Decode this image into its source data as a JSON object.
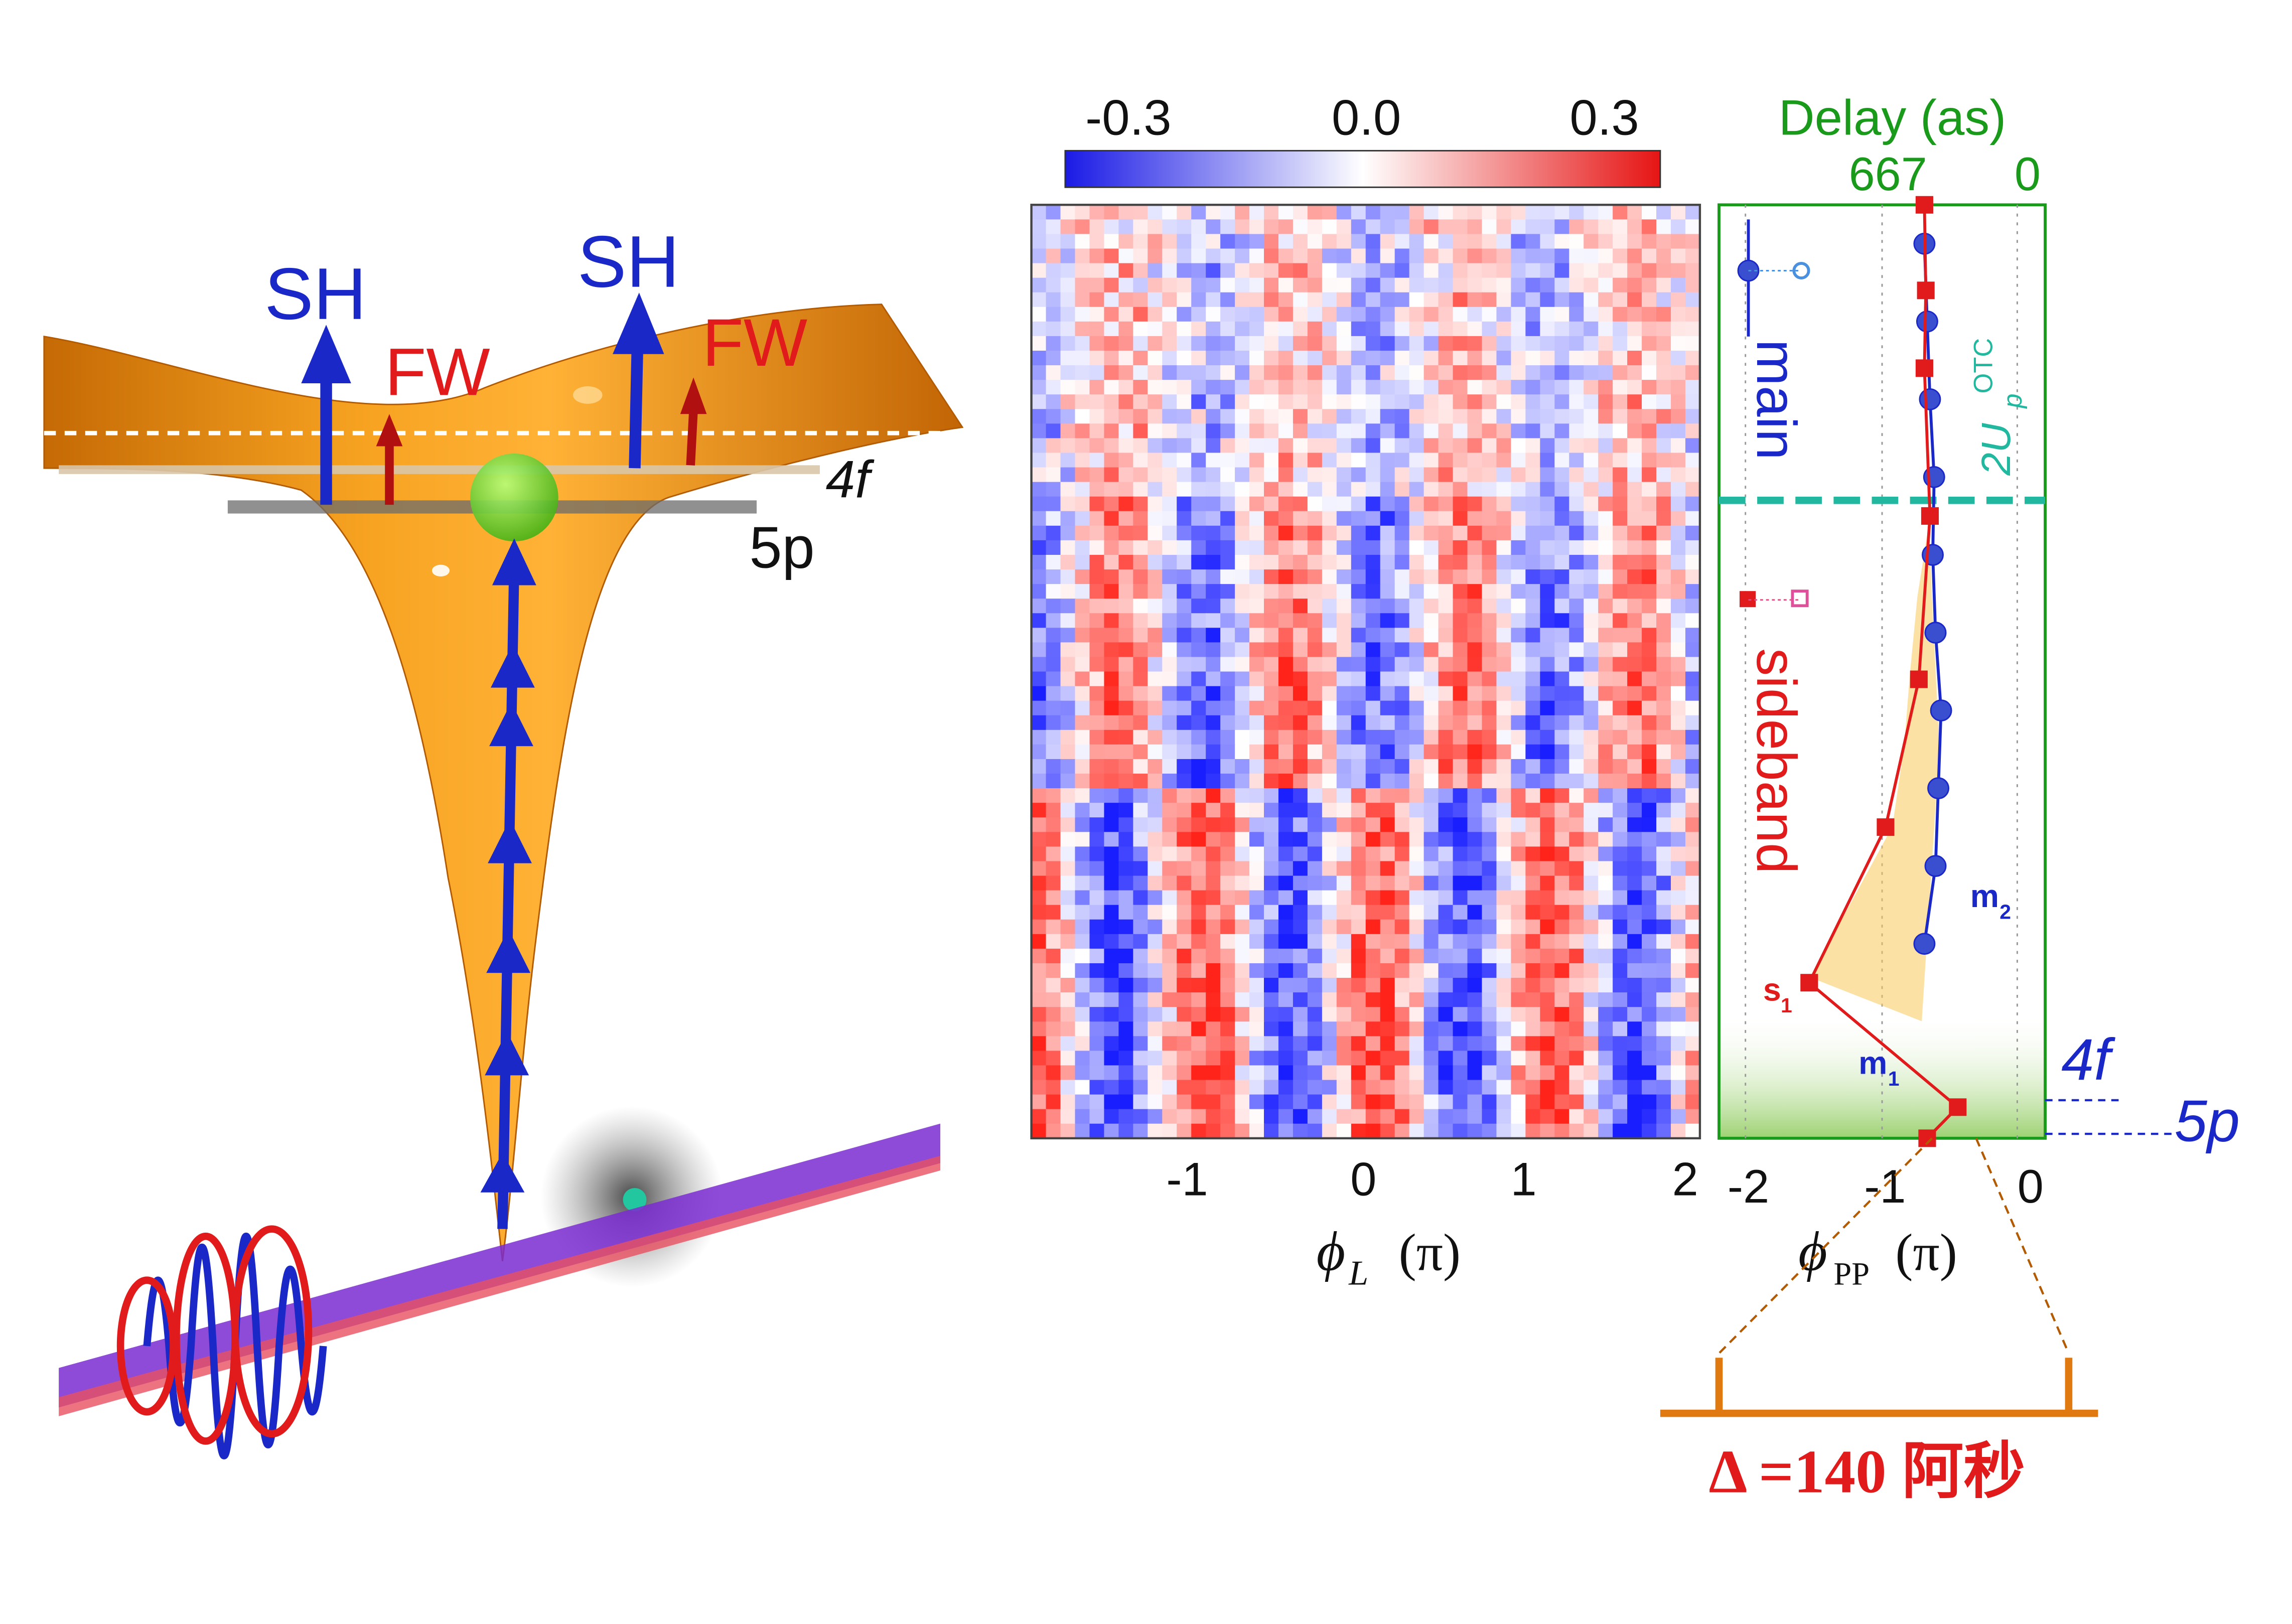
{
  "colors": {
    "blue": "#1b28c8",
    "red": "#e11b1b",
    "green": "#1a9a1a",
    "teal": "#22b8a0",
    "orange": "#e07a10",
    "surface": "#f59a12",
    "darkred": "#a11010"
  },
  "schematic": {
    "sh_left": "SH",
    "sh_right": "SH",
    "fw_left": "FW",
    "fw_right": "FW",
    "level_5p": "5p",
    "level_4f": "4f"
  },
  "colorbar": {
    "ticks": [
      "-0.3",
      "0.0",
      "0.3"
    ],
    "min": -0.3,
    "max": 0.3
  },
  "heatmap": {
    "x_ticks": [
      "-1",
      "0",
      "1",
      "2"
    ],
    "x_label_symbol": "ϕ",
    "x_label_sub": "L",
    "x_label_unit": "(π)"
  },
  "phase_panel": {
    "top_axis_title": "Delay (as)",
    "top_ticks": [
      "667",
      "0"
    ],
    "x_ticks": [
      "-2",
      "-1",
      "0"
    ],
    "x_label_symbol": "ϕ",
    "x_label_sub": "PP",
    "x_label_unit": "(π)",
    "legend_main": "main",
    "legend_sideband": "sideband",
    "threshold_label_base": "2U",
    "threshold_label_sub": "p",
    "threshold_label_sup": "OTC",
    "label_m2_base": "m",
    "label_m2_sub": "2",
    "label_m1_base": "m",
    "label_m1_sub": "1",
    "label_s1_base": "s",
    "label_s1_sub": "1",
    "level_4f": "4f",
    "level_5p": "5p"
  },
  "chart_data": {
    "type": "scatter",
    "xlim": [
      -2.2,
      0.15
    ],
    "x_ticks": [
      -2,
      -1,
      0
    ],
    "y_index_range": [
      0,
      12
    ],
    "series": [
      {
        "name": "main",
        "marker": "circle",
        "points": [
          [
            -0.72,
            0.5
          ],
          [
            -0.7,
            1.5
          ],
          [
            -0.68,
            2.5
          ],
          [
            -0.65,
            3.5
          ],
          [
            -0.66,
            4.5
          ],
          [
            -0.64,
            5.5
          ],
          [
            -0.6,
            6.5
          ],
          [
            -0.62,
            7.5
          ],
          [
            -0.64,
            8.5
          ],
          [
            -0.72,
            9.5
          ]
        ]
      },
      {
        "name": "sideband",
        "marker": "square",
        "points": [
          [
            -0.72,
            0.0
          ],
          [
            -0.71,
            1.1
          ],
          [
            -0.72,
            2.1
          ],
          [
            -0.68,
            4.0
          ],
          [
            -0.76,
            6.1
          ],
          [
            -1.0,
            8.0
          ],
          [
            -1.55,
            10.0
          ],
          [
            -0.48,
            11.6
          ],
          [
            -0.7,
            12.0
          ]
        ]
      }
    ],
    "delta_label_prefix": "Δ",
    "delta_label_value": "=140 阿秒"
  }
}
